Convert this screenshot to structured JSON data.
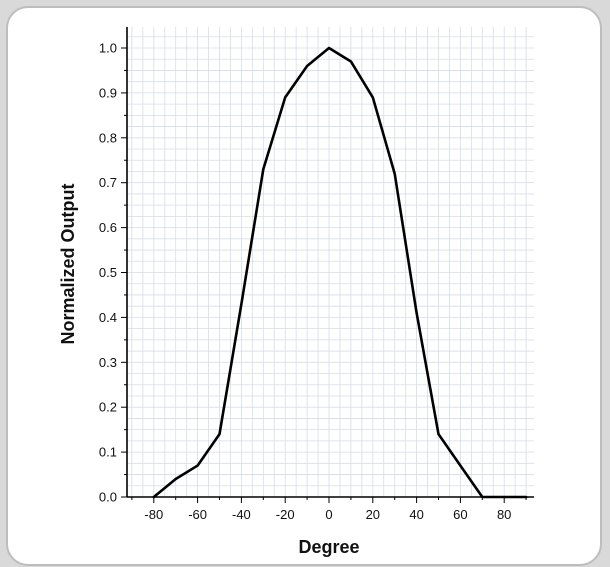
{
  "chart_data": {
    "type": "line",
    "title": "",
    "xlabel": "Degree",
    "ylabel": "Normalized Output",
    "xlim": [
      -90,
      90
    ],
    "ylim": [
      0,
      1.05
    ],
    "xticks": [
      -80,
      -60,
      -40,
      -20,
      0,
      20,
      40,
      60,
      80
    ],
    "xtick_labels": [
      "-80",
      "-60",
      "-40",
      "-20",
      "0",
      "20",
      "40",
      "60",
      "80"
    ],
    "yticks": [
      0,
      0.1,
      0.2,
      0.3,
      0.4,
      0.5,
      0.6,
      0.7,
      0.8,
      0.9,
      1.0
    ],
    "ytick_labels": [
      "0.0",
      "0.1",
      "0.2",
      "0.3",
      "0.4",
      "0.5",
      "0.6",
      "0.7",
      "0.8",
      "0.9",
      "1.0"
    ],
    "grid": true,
    "line_color": "#000000",
    "grid_color": "#d6dde9",
    "series": [
      {
        "x": [
          -80,
          -70,
          -60,
          -50,
          -40,
          -30,
          -20,
          -10,
          0,
          10,
          20,
          30,
          40,
          50,
          60,
          70
        ],
        "y": [
          0.0,
          0.04,
          0.07,
          0.14,
          0.43,
          0.73,
          0.89,
          0.96,
          1.0,
          0.97,
          0.89,
          0.72,
          0.41,
          0.14,
          0.07,
          0.0
        ]
      }
    ]
  }
}
